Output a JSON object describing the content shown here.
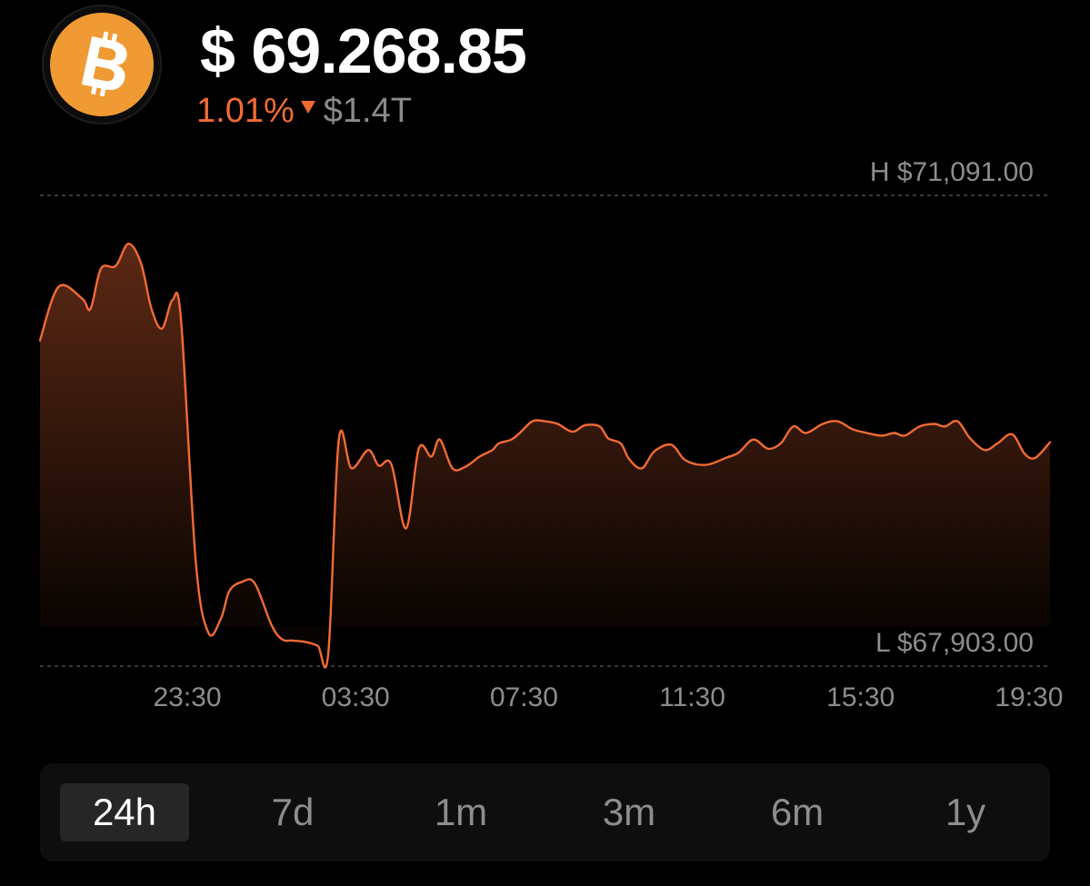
{
  "coin": {
    "name": "Bitcoin",
    "icon": "bitcoin-icon",
    "brand_color": "#f09a34"
  },
  "header": {
    "price": "$ 69.268.85",
    "change_percent": "1.01%",
    "change_direction": "down",
    "market_cap": "$1.4T"
  },
  "colors": {
    "accent": "#f26b35",
    "muted": "#8d8d8d",
    "background": "#000000"
  },
  "chart_data": {
    "type": "area",
    "high_label": "H $71,091.00",
    "low_label": "L $67,903.00",
    "high": 71091.0,
    "low": 67903.0,
    "x_ticks": [
      "23:30",
      "03:30",
      "07:30",
      "11:30",
      "15:30",
      "19:30"
    ],
    "x_tick_hours": [
      3.5,
      7.5,
      11.5,
      15.5,
      19.5,
      23.5
    ],
    "x_start_hour": 0,
    "x_end_hour": 24,
    "x": [
      0,
      0.44,
      1.0,
      1.2,
      1.45,
      1.8,
      2.1,
      2.4,
      2.65,
      2.9,
      3.15,
      3.35,
      3.7,
      4.0,
      4.3,
      4.5,
      4.8,
      5.1,
      5.5,
      5.75,
      6.0,
      6.3,
      6.6,
      6.85,
      7.1,
      7.4,
      7.8,
      8.05,
      8.35,
      8.7,
      9.0,
      9.3,
      9.5,
      9.8,
      10.1,
      10.45,
      10.75,
      10.9,
      11.2,
      11.4,
      11.7,
      12.0,
      12.3,
      12.65,
      12.95,
      13.3,
      13.5,
      13.8,
      14.0,
      14.3,
      14.6,
      15.0,
      15.3,
      15.6,
      15.9,
      16.3,
      16.6,
      16.95,
      17.3,
      17.6,
      17.9,
      18.2,
      18.6,
      18.95,
      19.3,
      19.65,
      20.0,
      20.3,
      20.55,
      20.9,
      21.25,
      21.5,
      21.8,
      22.1,
      22.45,
      22.75,
      23.1,
      23.4,
      23.65,
      24.0
    ],
    "y": [
      70280,
      70690,
      70600,
      70520,
      70830,
      70850,
      71020,
      70870,
      70520,
      70370,
      70590,
      70440,
      68590,
      68040,
      68150,
      68360,
      68430,
      68420,
      68100,
      67990,
      67980,
      67970,
      67940,
      67880,
      69520,
      69300,
      69440,
      69320,
      69330,
      68840,
      69450,
      69390,
      69520,
      69300,
      69310,
      69390,
      69440,
      69490,
      69520,
      69570,
      69660,
      69660,
      69640,
      69580,
      69630,
      69620,
      69530,
      69490,
      69370,
      69300,
      69430,
      69480,
      69370,
      69330,
      69330,
      69380,
      69420,
      69520,
      69450,
      69490,
      69620,
      69570,
      69640,
      69660,
      69600,
      69570,
      69550,
      69570,
      69550,
      69620,
      69640,
      69620,
      69660,
      69530,
      69440,
      69490,
      69560,
      69410,
      69380,
      69500
    ],
    "ylim": [
      67903,
      71091
    ],
    "grid": "dashed high/low lines"
  },
  "ranges": {
    "selected": "24h",
    "options": [
      "24h",
      "7d",
      "1m",
      "3m",
      "6m",
      "1y"
    ]
  }
}
